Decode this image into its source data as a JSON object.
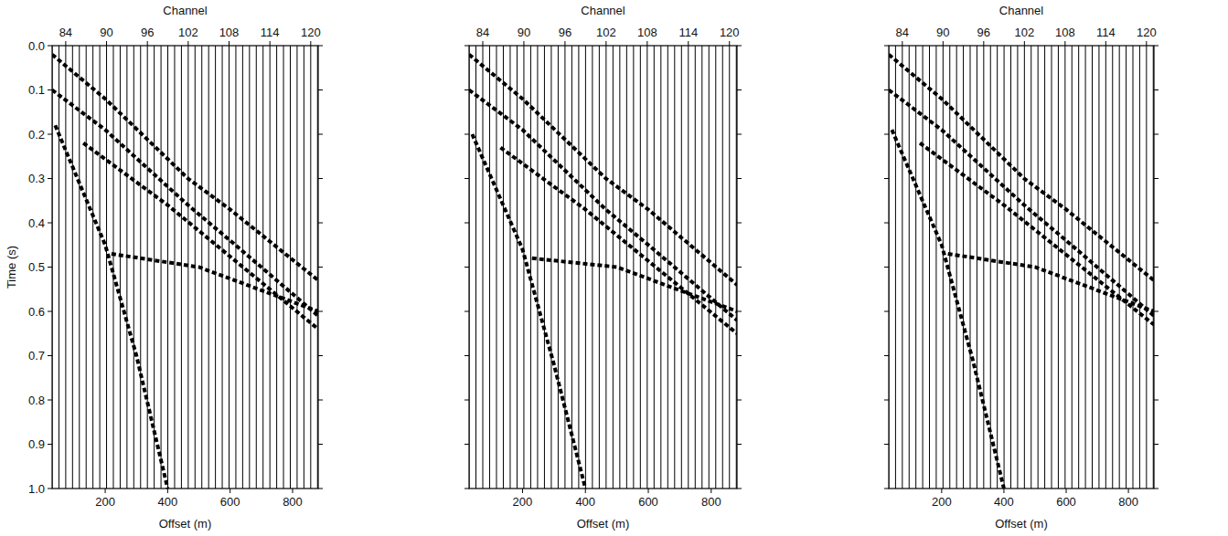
{
  "chart_data": [
    {
      "type": "line",
      "x_label": "Offset (m)",
      "x2_label": "Channel",
      "y_label": "Time (s)",
      "xlim": [
        30,
        882
      ],
      "xticks": [
        200,
        400,
        600,
        800
      ],
      "x2lim": [
        82,
        121.1
      ],
      "x2ticks": [
        84,
        90,
        96,
        102,
        108,
        114,
        120
      ],
      "ylim": [
        0,
        1
      ],
      "yticks": [
        {
          "value": 0,
          "label": "0.0"
        },
        0.1,
        0.2,
        0.3,
        0.4,
        0.5,
        0.6,
        0.7,
        0.8,
        0.9,
        {
          "value": 1,
          "label": "1.0"
        }
      ],
      "grid": false,
      "traces": [
        82,
        83,
        84,
        85,
        86,
        87,
        88,
        89,
        90,
        91,
        92,
        93,
        94,
        95,
        96,
        97,
        98,
        99,
        100,
        101,
        102,
        103,
        104,
        105,
        106,
        107,
        108,
        109,
        110,
        111,
        112,
        113,
        114,
        115,
        116,
        117,
        118,
        119,
        120,
        121
      ],
      "series": [
        {
          "x": [
            30,
            200,
            465,
            600,
            882
          ],
          "values": [
            0.02,
            0.12,
            0.3,
            0.37,
            0.53
          ],
          "color": "#000000",
          "line_style": "dashed"
        },
        {
          "x": [
            30,
            200,
            465,
            600,
            882
          ],
          "values": [
            0.1,
            0.19,
            0.36,
            0.44,
            0.61
          ],
          "color": "#000000",
          "line_style": "dashed"
        },
        {
          "x": [
            130,
            400,
            882
          ],
          "values": [
            0.22,
            0.36,
            0.64
          ],
          "color": "#000000",
          "line_style": "dashed"
        },
        {
          "x": [
            220,
            500,
            882
          ],
          "values": [
            0.47,
            0.5,
            0.6
          ],
          "color": "#000000",
          "line_style": "dashed"
        },
        {
          "x": [
            40,
            200,
            300,
            400
          ],
          "values": [
            0.18,
            0.45,
            0.7,
            1.0
          ],
          "color": "#000000",
          "line_style": "dashed"
        }
      ]
    },
    {
      "type": "line",
      "x_label": "Offset (m)",
      "x2_label": "Channel",
      "xlim": [
        30,
        882
      ],
      "xticks": [
        200,
        400,
        600,
        800
      ],
      "x2lim": [
        82,
        121.1
      ],
      "x2ticks": [
        84,
        90,
        96,
        102,
        108,
        114,
        120
      ],
      "ylim": [
        0,
        1
      ],
      "yticks": [
        0,
        0.1,
        0.2,
        0.3,
        0.4,
        0.5,
        0.6,
        0.7,
        0.8,
        0.9,
        1
      ],
      "grid": false,
      "tick_labels": "x",
      "traces": [
        82,
        83,
        84,
        85,
        86,
        87,
        88,
        89,
        90,
        91,
        92,
        93,
        94,
        95,
        96,
        97,
        98,
        99,
        100,
        101,
        102,
        103,
        104,
        105,
        106,
        107,
        108,
        109,
        110,
        111,
        112,
        113,
        114,
        115,
        116,
        117,
        118,
        119,
        120,
        121
      ],
      "series": [
        {
          "x": [
            30,
            200,
            465,
            600,
            882
          ],
          "values": [
            0.02,
            0.12,
            0.3,
            0.37,
            0.54
          ],
          "color": "#000000",
          "line_style": "dashed"
        },
        {
          "x": [
            30,
            200,
            465,
            600,
            882
          ],
          "values": [
            0.1,
            0.19,
            0.37,
            0.45,
            0.62
          ],
          "color": "#000000",
          "line_style": "dashed"
        },
        {
          "x": [
            130,
            400,
            882
          ],
          "values": [
            0.23,
            0.37,
            0.65
          ],
          "color": "#000000",
          "line_style": "dashed"
        },
        {
          "x": [
            230,
            500,
            882
          ],
          "values": [
            0.48,
            0.5,
            0.6
          ],
          "color": "#000000",
          "line_style": "dashed"
        },
        {
          "x": [
            40,
            200,
            300,
            400
          ],
          "values": [
            0.2,
            0.46,
            0.72,
            1.0
          ],
          "color": "#000000",
          "line_style": "dashed"
        }
      ]
    },
    {
      "type": "line",
      "x_label": "Offset (m)",
      "x2_label": "Channel",
      "xlim": [
        30,
        882
      ],
      "xticks": [
        200,
        400,
        600,
        800
      ],
      "x2lim": [
        82,
        121.1
      ],
      "x2ticks": [
        84,
        90,
        96,
        102,
        108,
        114,
        120
      ],
      "ylim": [
        0,
        1
      ],
      "yticks": [
        0,
        0.1,
        0.2,
        0.3,
        0.4,
        0.5,
        0.6,
        0.7,
        0.8,
        0.9,
        1
      ],
      "grid": false,
      "tick_labels": "x",
      "traces": [
        82,
        83,
        84,
        85,
        86,
        87,
        88,
        89,
        90,
        91,
        92,
        93,
        94,
        95,
        96,
        97,
        98,
        99,
        100,
        101,
        102,
        103,
        104,
        105,
        106,
        107,
        108,
        109,
        110,
        111,
        112,
        113,
        114,
        115,
        116,
        117,
        118,
        119,
        120,
        121
      ],
      "series": [
        {
          "x": [
            30,
            200,
            465,
            600,
            882
          ],
          "values": [
            0.02,
            0.12,
            0.3,
            0.37,
            0.53
          ],
          "color": "#000000",
          "line_style": "dashed"
        },
        {
          "x": [
            30,
            200,
            465,
            600,
            882
          ],
          "values": [
            0.1,
            0.19,
            0.36,
            0.44,
            0.61
          ],
          "color": "#000000",
          "line_style": "dashed"
        },
        {
          "x": [
            130,
            400,
            882
          ],
          "values": [
            0.22,
            0.36,
            0.63
          ],
          "color": "#000000",
          "line_style": "dashed"
        },
        {
          "x": [
            220,
            500,
            882
          ],
          "values": [
            0.47,
            0.5,
            0.6
          ],
          "color": "#000000",
          "line_style": "dashed"
        },
        {
          "x": [
            40,
            200,
            300,
            400
          ],
          "values": [
            0.19,
            0.45,
            0.71,
            1.0
          ],
          "color": "#000000",
          "line_style": "dashed"
        }
      ]
    }
  ]
}
